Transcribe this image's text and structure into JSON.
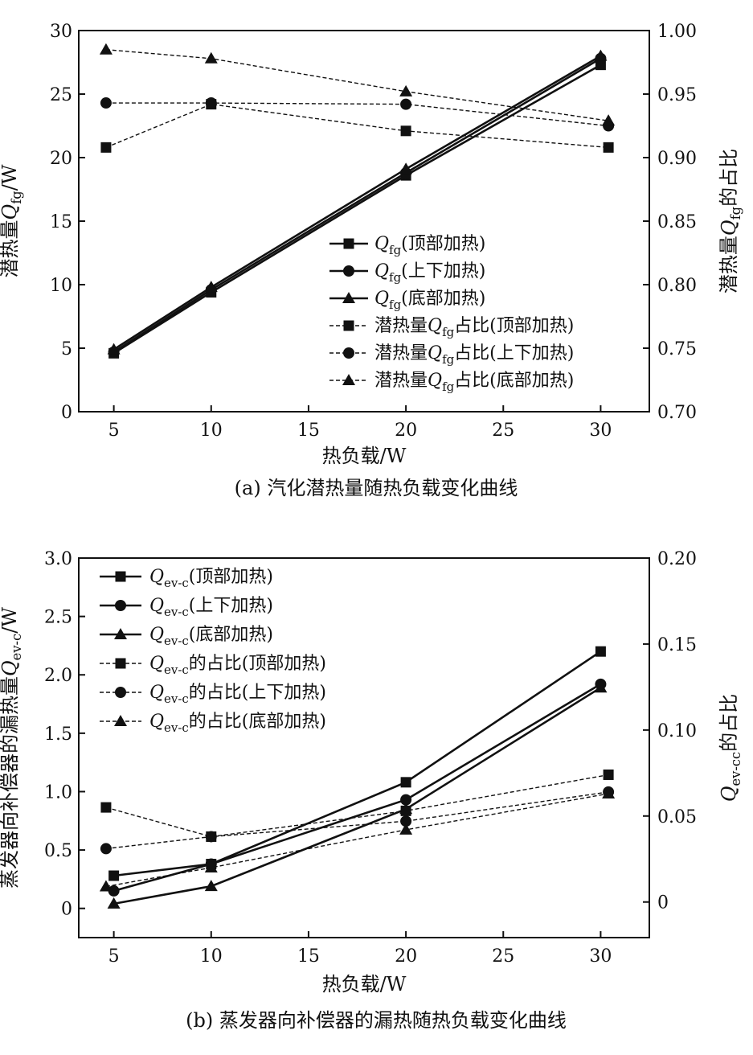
{
  "chart_data": [
    {
      "type": "line",
      "caption": "(a) 汽化潜热量随热负载变化曲线",
      "xlabel": "热负载/W",
      "ylabel_left": {
        "pre": "潜热量",
        "sym": "Q",
        "sub": "fg",
        "post": "/W"
      },
      "ylabel_right": {
        "pre": "潜热量",
        "sym": "Q",
        "sub": "fg",
        "post": "的占比"
      },
      "xlim": [
        3.2,
        32.5
      ],
      "x_ticks": [
        5,
        10,
        15,
        20,
        25,
        30
      ],
      "ylim_left": [
        0,
        30
      ],
      "y_left_ticks": [
        0,
        5,
        10,
        15,
        20,
        25,
        30
      ],
      "y_left_tick_labels": [
        "0",
        "5",
        "10",
        "15",
        "20",
        "25",
        "30"
      ],
      "ylim_right": [
        0.7,
        1.0
      ],
      "y_right_ticks": [
        0.7,
        0.75,
        0.8,
        0.85,
        0.9,
        0.95,
        1.0
      ],
      "y_right_tick_labels": [
        "0.70",
        "0.75",
        "0.80",
        "0.85",
        "0.90",
        "0.95",
        "1.00"
      ],
      "legend_position": "center-right",
      "series": [
        {
          "axis": "left",
          "style": "solid",
          "marker": "square",
          "legend": {
            "sym": "Q",
            "sub": "fg",
            "post": "(顶部加热)"
          },
          "x": [
            5,
            10,
            20,
            30
          ],
          "y": [
            4.6,
            9.4,
            18.6,
            27.3
          ]
        },
        {
          "axis": "left",
          "style": "solid",
          "marker": "circle",
          "legend": {
            "sym": "Q",
            "sub": "fg",
            "post": "(上下加热)"
          },
          "x": [
            5,
            10,
            20,
            30
          ],
          "y": [
            4.7,
            9.6,
            18.8,
            27.8
          ]
        },
        {
          "axis": "left",
          "style": "solid",
          "marker": "triangle",
          "legend": {
            "sym": "Q",
            "sub": "fg",
            "post": "(底部加热)"
          },
          "x": [
            5,
            10,
            20,
            30
          ],
          "y": [
            4.9,
            9.8,
            19.1,
            28.0
          ]
        },
        {
          "axis": "right",
          "style": "dashed",
          "marker": "square",
          "legend": {
            "pre": "潜热量",
            "sym": "Q",
            "sub": "fg",
            "post": "占比(顶部加热)"
          },
          "x": [
            4.6,
            10,
            20,
            30.4
          ],
          "y": [
            0.908,
            0.942,
            0.921,
            0.908
          ]
        },
        {
          "axis": "right",
          "style": "dashed",
          "marker": "circle",
          "legend": {
            "pre": "潜热量",
            "sym": "Q",
            "sub": "fg",
            "post": "占比(上下加热)"
          },
          "x": [
            4.6,
            10,
            20,
            30.4
          ],
          "y": [
            0.943,
            0.943,
            0.942,
            0.925
          ]
        },
        {
          "axis": "right",
          "style": "dashed",
          "marker": "triangle",
          "legend": {
            "pre": "潜热量",
            "sym": "Q",
            "sub": "fg",
            "post": "占比(底部加热)"
          },
          "x": [
            4.6,
            10,
            20,
            30.4
          ],
          "y": [
            0.985,
            0.978,
            0.952,
            0.929
          ]
        }
      ]
    },
    {
      "type": "line",
      "caption": "(b) 蒸发器向补偿器的漏热随热负载变化曲线",
      "xlabel": "热负载/W",
      "ylabel_left": {
        "pre": "蒸发器向补偿器的漏热量",
        "sym": "Q",
        "sub": "ev-c",
        "post": "/W"
      },
      "ylabel_right": {
        "pre": "",
        "sym": "Q",
        "sub": "ev-cc",
        "post": "的占比"
      },
      "xlim": [
        3.2,
        32.5
      ],
      "x_ticks": [
        5,
        10,
        15,
        20,
        25,
        30
      ],
      "ylim_left": [
        -0.25,
        3.0
      ],
      "y_left_ticks": [
        0,
        0.5,
        1.0,
        1.5,
        2.0,
        2.5,
        3.0
      ],
      "y_left_tick_labels": [
        "0",
        "0.5",
        "1.0",
        "1.5",
        "2.0",
        "2.5",
        "3.0"
      ],
      "ylim_right": [
        -0.0207,
        0.2
      ],
      "y_right_ticks": [
        0,
        0.05,
        0.1,
        0.15,
        0.2
      ],
      "y_right_tick_labels": [
        "0",
        "0.05",
        "0.10",
        "0.15",
        "0.20"
      ],
      "legend_position": "top-left",
      "series": [
        {
          "axis": "left",
          "style": "solid",
          "marker": "square",
          "legend": {
            "sym": "Q",
            "sub": "ev-c",
            "post": "(顶部加热)"
          },
          "x": [
            5,
            10,
            20,
            30
          ],
          "y": [
            0.28,
            0.38,
            1.08,
            2.2
          ]
        },
        {
          "axis": "left",
          "style": "solid",
          "marker": "circle",
          "legend": {
            "sym": "Q",
            "sub": "ev-c",
            "post": "(上下加热)"
          },
          "x": [
            5,
            10,
            20,
            30
          ],
          "y": [
            0.15,
            0.38,
            0.93,
            1.92
          ]
        },
        {
          "axis": "left",
          "style": "solid",
          "marker": "triangle",
          "legend": {
            "sym": "Q",
            "sub": "ev-c",
            "post": "(底部加热)"
          },
          "x": [
            5,
            10,
            20,
            30
          ],
          "y": [
            0.04,
            0.19,
            0.85,
            1.89
          ]
        },
        {
          "axis": "right",
          "style": "dashed",
          "marker": "square",
          "legend": {
            "sym": "Q",
            "sub": "ev-c",
            "post": "的占比(顶部加热)"
          },
          "x": [
            4.6,
            10,
            20,
            30.4
          ],
          "y": [
            0.055,
            0.038,
            0.053,
            0.074
          ]
        },
        {
          "axis": "right",
          "style": "dashed",
          "marker": "circle",
          "legend": {
            "sym": "Q",
            "sub": "ev-c",
            "post": "的占比(上下加热)"
          },
          "x": [
            4.6,
            10,
            20,
            30.4
          ],
          "y": [
            0.031,
            0.038,
            0.047,
            0.064
          ]
        },
        {
          "axis": "right",
          "style": "dashed",
          "marker": "triangle",
          "legend": {
            "sym": "Q",
            "sub": "ev-c",
            "post": "的占比(底部加热)"
          },
          "x": [
            4.6,
            10,
            20,
            30.4
          ],
          "y": [
            0.009,
            0.02,
            0.042,
            0.063
          ]
        }
      ]
    }
  ]
}
